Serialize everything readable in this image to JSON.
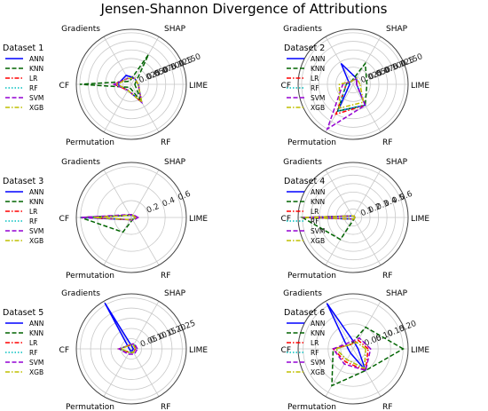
{
  "figure_title": "Jensen-Shannon Divergence of Attributions",
  "colors": {
    "ANN": "#0000ff",
    "KNN": "#006400",
    "LR": "#ff0000",
    "RF": "#00bfbf",
    "SVM": "#9400d3",
    "XGB": "#bfbf00",
    "grid": "#c8c8c8",
    "frame": "#444444"
  },
  "legend_styles": {
    "ANN": "solid",
    "KNN": "dashed",
    "LR": "dashdot",
    "RF": "dotted",
    "SVM": "dashed",
    "XGB": "dashdot"
  },
  "chart_data": [
    {
      "type": "radar",
      "title": "Dataset 1",
      "axes": [
        "LIME",
        "SHAP",
        "Gradients",
        "CF",
        "Permutation",
        "RF"
      ],
      "rlim": [
        0,
        0.16
      ],
      "tick_labels": [
        "0.025",
        "0.050",
        "0.075",
        "0.100",
        "0.125",
        "0.150"
      ],
      "grid": true,
      "legend": "left",
      "series": [
        {
          "name": "ANN",
          "values": [
            0.02,
            0.02,
            0.03,
            0.04,
            0.02,
            0.06
          ]
        },
        {
          "name": "KNN",
          "values": [
            0.01,
            0.1,
            0.01,
            0.15,
            0.01,
            0.06
          ]
        },
        {
          "name": "LR",
          "values": [
            0.02,
            0.02,
            0.02,
            0.05,
            0.02,
            0.06
          ]
        },
        {
          "name": "RF",
          "values": [
            0.02,
            0.02,
            0.02,
            0.04,
            0.02,
            0.06
          ]
        },
        {
          "name": "SVM",
          "values": [
            0.02,
            0.02,
            0.02,
            0.05,
            0.02,
            0.06
          ]
        },
        {
          "name": "XGB",
          "values": [
            0.02,
            0.02,
            0.02,
            0.04,
            0.02,
            0.06
          ]
        }
      ]
    },
    {
      "type": "radar",
      "title": "Dataset 2",
      "axes": [
        "LIME",
        "SHAP",
        "Gradients",
        "CF",
        "Permutation",
        "RF"
      ],
      "rlim": [
        0,
        0.16
      ],
      "tick_labels": [
        "0.025",
        "0.050",
        "0.075",
        "0.100",
        "0.125",
        "0.150"
      ],
      "grid": true,
      "legend": "left",
      "series": [
        {
          "name": "ANN",
          "values": [
            0.01,
            0.02,
            0.07,
            0.01,
            0.09,
            0.07
          ]
        },
        {
          "name": "KNN",
          "values": [
            0.04,
            0.07,
            0.01,
            0.02,
            0.09,
            0.07
          ]
        },
        {
          "name": "LR",
          "values": [
            0.01,
            0.02,
            0.01,
            0.02,
            0.1,
            0.07
          ]
        },
        {
          "name": "RF",
          "values": [
            0.01,
            0.02,
            0.01,
            0.02,
            0.09,
            0.07
          ]
        },
        {
          "name": "SVM",
          "values": [
            0.01,
            0.02,
            0.01,
            0.03,
            0.15,
            0.07
          ]
        },
        {
          "name": "XGB",
          "values": [
            0.02,
            0.02,
            0.01,
            0.04,
            0.08,
            0.06
          ]
        }
      ]
    },
    {
      "type": "radar",
      "title": "Dataset 3",
      "axes": [
        "LIME",
        "SHAP",
        "Gradients",
        "CF",
        "Permutation",
        "RF"
      ],
      "rlim": [
        0,
        0.65
      ],
      "tick_labels": [
        "0.2",
        "0.4",
        "0.6"
      ],
      "grid": true,
      "legend": "left",
      "series": [
        {
          "name": "ANN",
          "values": [
            0.05,
            0.03,
            0.03,
            0.6,
            0.03,
            0.03
          ]
        },
        {
          "name": "KNN",
          "values": [
            0.05,
            0.03,
            0.03,
            0.6,
            0.2,
            0.03
          ]
        },
        {
          "name": "LR",
          "values": [
            0.05,
            0.03,
            0.03,
            0.6,
            0.03,
            0.03
          ]
        },
        {
          "name": "RF",
          "values": [
            0.05,
            0.03,
            0.03,
            0.6,
            0.03,
            0.03
          ]
        },
        {
          "name": "SVM",
          "values": [
            0.08,
            0.04,
            0.04,
            0.6,
            0.03,
            0.04
          ]
        },
        {
          "name": "XGB",
          "values": [
            0.05,
            0.03,
            0.03,
            0.45,
            0.03,
            0.03
          ]
        }
      ]
    },
    {
      "type": "radar",
      "title": "Dataset 4",
      "axes": [
        "LIME",
        "SHAP",
        "Gradients",
        "CF",
        "Permutation",
        "RF"
      ],
      "rlim": [
        0,
        0.65
      ],
      "tick_labels": [
        "0.1",
        "0.2",
        "0.3",
        "0.4",
        "0.5",
        "0.6"
      ],
      "grid": true,
      "legend": "left",
      "series": [
        {
          "name": "ANN",
          "values": [
            0.02,
            0.02,
            0.02,
            0.6,
            0.02,
            0.02
          ]
        },
        {
          "name": "KNN",
          "values": [
            0.02,
            0.02,
            0.02,
            0.6,
            0.3,
            0.02
          ]
        },
        {
          "name": "LR",
          "values": [
            0.02,
            0.02,
            0.02,
            0.6,
            0.02,
            0.02
          ]
        },
        {
          "name": "RF",
          "values": [
            0.02,
            0.02,
            0.02,
            0.6,
            0.02,
            0.02
          ]
        },
        {
          "name": "SVM",
          "values": [
            0.02,
            0.02,
            0.02,
            0.6,
            0.02,
            0.02
          ]
        },
        {
          "name": "XGB",
          "values": [
            0.02,
            0.02,
            0.02,
            0.6,
            0.02,
            0.02
          ]
        }
      ]
    },
    {
      "type": "radar",
      "title": "Dataset 5",
      "axes": [
        "LIME",
        "SHAP",
        "Gradients",
        "CF",
        "Permutation",
        "RF"
      ],
      "rlim": [
        0,
        0.27
      ],
      "tick_labels": [
        "0.05",
        "0.10",
        "0.15",
        "0.20",
        "0.25"
      ],
      "grid": true,
      "legend": "left",
      "series": [
        {
          "name": "ANN",
          "values": [
            0.01,
            0.01,
            0.26,
            0.01,
            0.01,
            0.01
          ]
        },
        {
          "name": "KNN",
          "values": [
            0.02,
            0.03,
            0.02,
            0.06,
            0.02,
            0.02
          ]
        },
        {
          "name": "LR",
          "values": [
            0.02,
            0.03,
            0.02,
            0.06,
            0.02,
            0.02
          ]
        },
        {
          "name": "RF",
          "values": [
            0.02,
            0.03,
            0.02,
            0.06,
            0.02,
            0.02
          ]
        },
        {
          "name": "SVM",
          "values": [
            0.03,
            0.03,
            0.02,
            0.06,
            0.03,
            0.03
          ]
        },
        {
          "name": "XGB",
          "values": [
            0.02,
            0.02,
            0.02,
            0.05,
            0.02,
            0.02
          ]
        }
      ]
    },
    {
      "type": "radar",
      "title": "Dataset 6",
      "axes": [
        "LIME",
        "SHAP",
        "Gradients",
        "CF",
        "Permutation",
        "RF"
      ],
      "rlim": [
        0,
        0.22
      ],
      "tick_labels": [
        "0.05",
        "0.10",
        "0.15",
        "0.20"
      ],
      "grid": true,
      "legend": "left",
      "series": [
        {
          "name": "ANN",
          "values": [
            0.02,
            0.02,
            0.21,
            0.02,
            0.02,
            0.1
          ]
        },
        {
          "name": "KNN",
          "values": [
            0.2,
            0.1,
            0.02,
            0.08,
            0.17,
            0.1
          ]
        },
        {
          "name": "LR",
          "values": [
            0.06,
            0.04,
            0.02,
            0.08,
            0.06,
            0.1
          ]
        },
        {
          "name": "RF",
          "values": [
            0.05,
            0.03,
            0.02,
            0.07,
            0.05,
            0.09
          ]
        },
        {
          "name": "SVM",
          "values": [
            0.07,
            0.05,
            0.03,
            0.08,
            0.07,
            0.1
          ]
        },
        {
          "name": "XGB",
          "values": [
            0.05,
            0.03,
            0.02,
            0.07,
            0.05,
            0.09
          ]
        }
      ]
    }
  ]
}
